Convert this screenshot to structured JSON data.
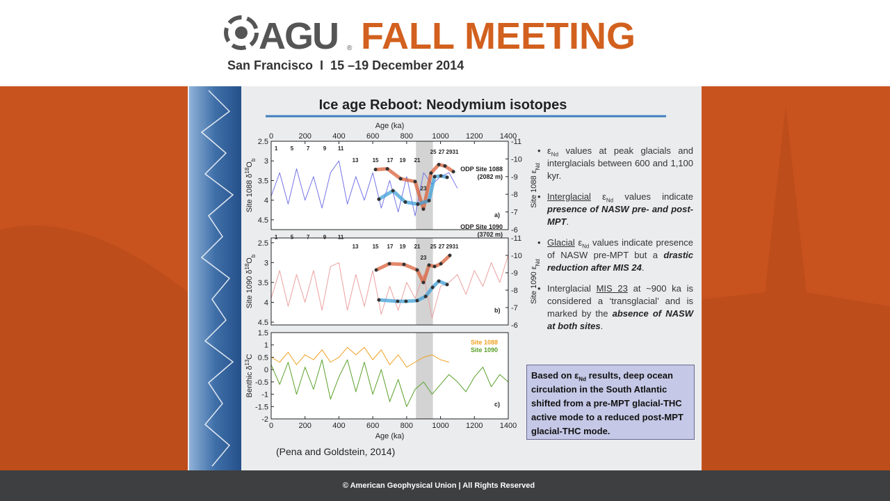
{
  "header": {
    "brand": "AGU",
    "registered": "®",
    "event": "FALL MEETING",
    "subtitle": "San Francisco  I  15 –19 December 2014"
  },
  "slide": {
    "title": "Ice age Reboot: Neodymium isotopes",
    "bullets": [
      [
        "ε",
        "Nd",
        " values at peak glacials and interglacials between 600 and 1,100 kyr."
      ],
      [
        "Interglacial",
        " ε",
        "Nd",
        " values indicate ",
        "presence of NASW pre- and post-MPT",
        "."
      ],
      [
        "Glacial",
        " ε",
        "Nd",
        " values indicate presence of NASW pre-MPT but a ",
        "drastic reduction after MIS 24",
        "."
      ],
      [
        "Interglacial ",
        "MIS 23",
        " at ~900 ka is considered a ‘transglacial’ and is marked by the ",
        "absence of NASW at both sites",
        "."
      ]
    ],
    "box": [
      "Based on ε",
      "Nd",
      " results, deep ocean circulation in the South Atlantic shifted from a pre-MPT glacial-THC active mode to a reduced post-MPT glacial-THC mode."
    ],
    "citation": "(Pena and Goldstein, 2014)"
  },
  "footer": "© American Geophysical Union | All Rights Reserved",
  "chart_data": [
    {
      "type": "line",
      "panel_label": "a)",
      "site_label": [
        "ODP Site 1088",
        "(2082 m)"
      ],
      "xlim": [
        0,
        1400
      ],
      "xticks": [
        0,
        200,
        400,
        600,
        800,
        1000,
        1200,
        1400
      ],
      "xlabel": "Age (ka)",
      "xaxis_position": "top",
      "ylim": [
        2.5,
        4.75
      ],
      "yticks": [
        2.5,
        3,
        3.5,
        4,
        4.5
      ],
      "y_inverted": true,
      "ylabel": [
        "Site 1088 δ",
        "18",
        "O",
        "b"
      ],
      "y2lim": [
        -11,
        -6
      ],
      "y2ticks": [
        -11,
        -10,
        -9,
        -8,
        -7,
        -6
      ],
      "y2label": [
        "Site 1088 ε",
        "Nd"
      ],
      "highlight": [
        855,
        955
      ],
      "annotations": [
        {
          "text": "1",
          "x": 29,
          "y": 2.68
        },
        {
          "text": "5",
          "x": 123,
          "y": 2.68
        },
        {
          "text": "7",
          "x": 218,
          "y": 2.68
        },
        {
          "text": "9",
          "x": 316,
          "y": 2.68
        },
        {
          "text": "11",
          "x": 411,
          "y": 2.68
        },
        {
          "text": "13",
          "x": 497,
          "y": 2.98
        },
        {
          "text": "15",
          "x": 616,
          "y": 2.98
        },
        {
          "text": "17",
          "x": 702,
          "y": 2.98
        },
        {
          "text": "19",
          "x": 776,
          "y": 2.98
        },
        {
          "text": "21",
          "x": 862,
          "y": 2.98
        },
        {
          "text": "23",
          "x": 899,
          "y": 3.7
        },
        {
          "text": "25",
          "x": 957,
          "y": 2.77
        },
        {
          "text": "27",
          "x": 1006,
          "y": 2.77
        },
        {
          "text": "29",
          "x": 1051,
          "y": 2.77
        },
        {
          "text": "31",
          "x": 1088,
          "y": 2.77
        }
      ],
      "series": [
        {
          "color": "#7474e6",
          "x": [
            0,
            50,
            100,
            150,
            200,
            250,
            300,
            350,
            400,
            450,
            500,
            550,
            600,
            650,
            700,
            750,
            800,
            850,
            900,
            950,
            1000,
            1050,
            1100
          ],
          "values": [
            3.9,
            3.3,
            4.1,
            3.2,
            4.0,
            3.4,
            4.2,
            3.3,
            3.0,
            4.1,
            3.4,
            4.0,
            3.3,
            4.2,
            3.5,
            4.3,
            3.4,
            4.4,
            3.3,
            3.6,
            3.4,
            3.3,
            3.7
          ]
        },
        {
          "color": "#d9603a",
          "axis": "y2",
          "markers": true,
          "x": [
            616,
            686,
            764,
            850,
            899,
            944,
            990,
            1026,
            1076
          ],
          "values": [
            -9.4,
            -9.44,
            -8.88,
            -8.72,
            -7.16,
            -9.2,
            -9.68,
            -9.6,
            -9.28
          ]
        },
        {
          "color": "#3fa0d8",
          "axis": "y2",
          "markers": true,
          "x": [
            636,
            719,
            792,
            866,
            932,
            965,
            1002,
            1039
          ],
          "values": [
            -7.72,
            -8.2,
            -7.56,
            -7.44,
            -7.64,
            -9.0,
            -9.04,
            -8.96
          ]
        }
      ]
    },
    {
      "type": "line",
      "panel_label": "b)",
      "site_label": [
        "ODP Site 1090",
        "(3702 m)"
      ],
      "xlim": [
        0,
        1400
      ],
      "ylim": [
        2.38,
        4.57
      ],
      "yticks": [
        2.5,
        3,
        3.5,
        4,
        4.5
      ],
      "y_inverted": true,
      "ylabel": [
        "Site 1090 δ",
        "18",
        "O",
        "b"
      ],
      "y2lim": [
        -11,
        -6
      ],
      "y2ticks": [
        -11,
        -10,
        -9,
        -8,
        -7,
        -6
      ],
      "y2label": [
        "Site 1090 ε",
        "Nd"
      ],
      "highlight": [
        855,
        955
      ],
      "annotations": [
        {
          "text": "1",
          "x": 29,
          "y": 2.35
        },
        {
          "text": "5",
          "x": 123,
          "y": 2.35
        },
        {
          "text": "7",
          "x": 218,
          "y": 2.35
        },
        {
          "text": "9",
          "x": 316,
          "y": 2.35
        },
        {
          "text": "11",
          "x": 411,
          "y": 2.35
        },
        {
          "text": "13",
          "x": 497,
          "y": 2.59
        },
        {
          "text": "15",
          "x": 616,
          "y": 2.59
        },
        {
          "text": "17",
          "x": 702,
          "y": 2.59
        },
        {
          "text": "19",
          "x": 776,
          "y": 2.59
        },
        {
          "text": "21",
          "x": 862,
          "y": 2.59
        },
        {
          "text": "23",
          "x": 899,
          "y": 2.87
        },
        {
          "text": "25",
          "x": 957,
          "y": 2.59
        },
        {
          "text": "27",
          "x": 1006,
          "y": 2.59
        },
        {
          "text": "29",
          "x": 1051,
          "y": 2.59
        },
        {
          "text": "31",
          "x": 1088,
          "y": 2.59
        }
      ],
      "series": [
        {
          "color": "#eba0a0",
          "x": [
            0,
            50,
            100,
            150,
            200,
            250,
            300,
            350,
            400,
            450,
            500,
            550,
            600,
            650,
            700,
            750,
            800,
            850,
            900,
            950,
            1000,
            1050,
            1100,
            1150,
            1200,
            1250,
            1300,
            1350,
            1400
          ],
          "values": [
            3.9,
            3.2,
            4.1,
            3.3,
            4.0,
            3.2,
            4.2,
            3.1,
            3.0,
            4.2,
            3.3,
            4.1,
            3.2,
            4.3,
            3.6,
            4.2,
            3.5,
            3.9,
            3.3,
            4.4,
            3.6,
            3.5,
            3.3,
            3.8,
            3.2,
            3.6,
            3.0,
            3.5,
            2.8
          ]
        },
        {
          "color": "#d9603a",
          "axis": "y2",
          "markers": true,
          "x": [
            620,
            698,
            784,
            862,
            899,
            932,
            965,
            1002,
            1055
          ],
          "values": [
            -9.16,
            -9.52,
            -9.48,
            -9.16,
            -8.44,
            -9.44,
            -9.36,
            -9.52,
            -10.0
          ]
        },
        {
          "color": "#3fa0d8",
          "axis": "y2",
          "markers": true,
          "x": [
            636,
            747,
            796,
            862,
            912,
            953,
            990,
            1039
          ],
          "values": [
            -7.44,
            -7.36,
            -7.36,
            -7.4,
            -7.64,
            -8.16,
            -8.52,
            -8.32
          ]
        }
      ]
    },
    {
      "type": "line",
      "panel_label": "c)",
      "xlim": [
        0,
        1400
      ],
      "xticks": [
        0,
        200,
        400,
        600,
        800,
        1000,
        1200,
        1400
      ],
      "xlabel": "Age (ka)",
      "xaxis_position": "bottom",
      "ylim": [
        -2,
        1.5
      ],
      "yticks": [
        1.5,
        1,
        0.5,
        0,
        -0.5,
        -1,
        -1.5,
        -2
      ],
      "ylabel": [
        "Benthic δ",
        "13",
        "C"
      ],
      "highlight": [
        855,
        955
      ],
      "series": [
        {
          "name": "Site 1088",
          "color": "#f0a020",
          "x": [
            0,
            50,
            100,
            150,
            200,
            250,
            300,
            350,
            400,
            450,
            500,
            550,
            600,
            650,
            700,
            750,
            800,
            850,
            900,
            950,
            1000,
            1050
          ],
          "values": [
            0.5,
            0.3,
            0.7,
            0.2,
            0.6,
            0.4,
            0.8,
            0.3,
            0.5,
            0.9,
            0.6,
            0.9,
            0.4,
            0.8,
            0.2,
            0.6,
            0.1,
            0.3,
            0.5,
            0.6,
            0.4,
            0.3
          ]
        },
        {
          "name": "Site 1090",
          "color": "#5aa02a",
          "x": [
            0,
            50,
            100,
            150,
            200,
            250,
            300,
            350,
            400,
            450,
            500,
            550,
            600,
            650,
            700,
            750,
            800,
            850,
            900,
            950,
            1000,
            1050,
            1100,
            1150,
            1200,
            1250,
            1300,
            1350,
            1400
          ],
          "values": [
            0.2,
            -0.6,
            0.3,
            -1.0,
            0.1,
            -0.8,
            0.4,
            -1.2,
            -0.3,
            0.4,
            -0.9,
            0.3,
            -1.0,
            0.0,
            -1.3,
            -0.4,
            -1.5,
            -0.8,
            -0.5,
            -1.0,
            -0.6,
            -0.2,
            -0.5,
            -0.9,
            -0.3,
            0.1,
            -0.7,
            -0.2,
            -0.5
          ]
        }
      ]
    }
  ]
}
